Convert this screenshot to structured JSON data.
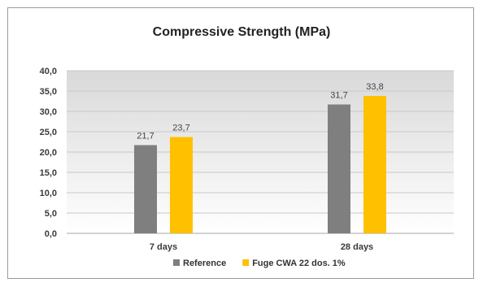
{
  "chart_data": {
    "type": "bar",
    "title": "Compressive Strength (MPa)",
    "xlabel": "",
    "ylabel": "",
    "categories": [
      "7 days",
      "28 days"
    ],
    "series": [
      {
        "name": "Reference",
        "values": [
          21.7,
          31.7
        ],
        "labels": [
          "21,7",
          "31,7"
        ],
        "color": "#7f7f7f"
      },
      {
        "name": "Fuge CWA 22 dos. 1%",
        "values": [
          23.7,
          33.8
        ],
        "labels": [
          "23,7",
          "33,8"
        ],
        "color": "#ffc000"
      }
    ],
    "ylim": [
      0,
      40
    ],
    "yticks": [
      0,
      5,
      10,
      15,
      20,
      25,
      30,
      35,
      40
    ],
    "ytick_labels": [
      "0,0",
      "5,0",
      "10,0",
      "15,0",
      "20,0",
      "25,0",
      "30,0",
      "35,0",
      "40,0"
    ],
    "grid": true,
    "legend_position": "bottom"
  }
}
